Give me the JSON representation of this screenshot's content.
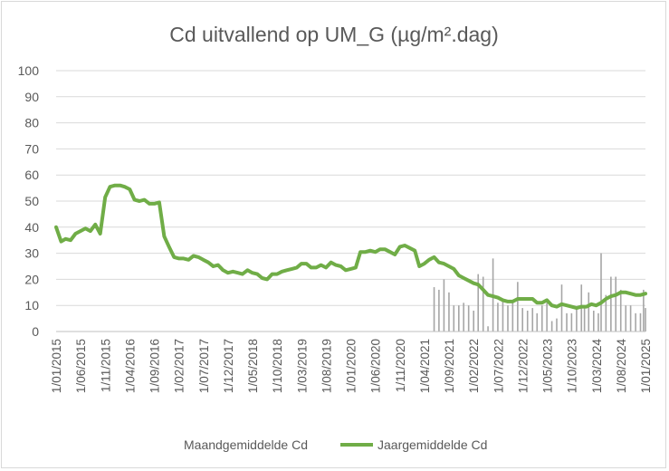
{
  "chart_data": {
    "type": "bar+line",
    "title": "Cd uitvallend op UM_G (µg/m².dag)",
    "ylim": [
      0,
      100
    ],
    "yticks": [
      0,
      10,
      20,
      30,
      40,
      50,
      60,
      70,
      80,
      90,
      100
    ],
    "xlim": [
      "2015-01-01",
      "2025-01-01"
    ],
    "xtick_labels": [
      "1/01/2015",
      "1/06/2015",
      "1/11/2015",
      "1/04/2016",
      "1/09/2016",
      "1/02/2017",
      "1/07/2017",
      "1/12/2017",
      "1/05/2018",
      "1/10/2018",
      "1/03/2019",
      "1/08/2019",
      "1/01/2020",
      "1/06/2020",
      "1/11/2020",
      "1/04/2021",
      "1/09/2021",
      "1/02/2022",
      "1/07/2022",
      "1/12/2022",
      "1/05/2023",
      "1/10/2023",
      "1/03/2024",
      "1/08/2024",
      "1/01/2025"
    ],
    "grid": "horizontal",
    "legend_position": "bottom",
    "series": [
      {
        "name": "Maandgemiddelde Cd",
        "type": "bar",
        "color": "#a6a6a6",
        "points": [
          [
            "2021-06-01",
            17
          ],
          [
            "2021-07-01",
            16
          ],
          [
            "2021-08-01",
            20
          ],
          [
            "2021-09-01",
            15
          ],
          [
            "2021-10-01",
            10
          ],
          [
            "2021-11-01",
            10
          ],
          [
            "2021-12-01",
            11
          ],
          [
            "2022-01-01",
            10
          ],
          [
            "2022-02-01",
            8
          ],
          [
            "2022-03-01",
            22
          ],
          [
            "2022-04-01",
            21
          ],
          [
            "2022-05-01",
            2
          ],
          [
            "2022-06-01",
            28
          ],
          [
            "2022-07-01",
            11
          ],
          [
            "2022-08-01",
            12
          ],
          [
            "2022-09-01",
            10
          ],
          [
            "2022-10-01",
            12
          ],
          [
            "2022-11-01",
            19
          ],
          [
            "2022-12-01",
            9
          ],
          [
            "2023-01-01",
            8
          ],
          [
            "2023-02-01",
            9
          ],
          [
            "2023-03-01",
            7
          ],
          [
            "2023-04-01",
            10
          ],
          [
            "2023-05-01",
            11
          ],
          [
            "2023-06-01",
            4
          ],
          [
            "2023-07-01",
            5
          ],
          [
            "2023-08-01",
            18
          ],
          [
            "2023-09-01",
            7
          ],
          [
            "2023-10-01",
            7
          ],
          [
            "2023-11-01",
            9
          ],
          [
            "2023-12-01",
            18
          ],
          [
            "2023-12-20",
            10
          ],
          [
            "2024-01-15",
            15
          ],
          [
            "2024-02-15",
            8
          ],
          [
            "2024-03-15",
            7
          ],
          [
            "2024-04-01",
            30
          ],
          [
            "2024-05-01",
            14
          ],
          [
            "2024-06-01",
            21
          ],
          [
            "2024-07-01",
            21
          ],
          [
            "2024-08-01",
            16
          ],
          [
            "2024-09-01",
            10
          ],
          [
            "2024-10-01",
            10
          ],
          [
            "2024-11-01",
            7
          ],
          [
            "2024-12-01",
            7
          ],
          [
            "2024-12-20",
            16
          ],
          [
            "2025-01-01",
            9
          ]
        ]
      },
      {
        "name": "Jaargemiddelde Cd",
        "type": "line",
        "color": "#70ad47",
        "points": [
          [
            "2015-01-01",
            40
          ],
          [
            "2015-02-01",
            34.5
          ],
          [
            "2015-03-01",
            35.5
          ],
          [
            "2015-04-01",
            35
          ],
          [
            "2015-05-01",
            37.5
          ],
          [
            "2015-06-01",
            38.5
          ],
          [
            "2015-07-01",
            39.5
          ],
          [
            "2015-08-01",
            38.5
          ],
          [
            "2015-09-01",
            41
          ],
          [
            "2015-10-01",
            37.5
          ],
          [
            "2015-11-01",
            51.5
          ],
          [
            "2015-12-01",
            55.5
          ],
          [
            "2016-01-01",
            56
          ],
          [
            "2016-02-01",
            56
          ],
          [
            "2016-03-01",
            55.5
          ],
          [
            "2016-04-01",
            54.5
          ],
          [
            "2016-05-01",
            50.5
          ],
          [
            "2016-06-01",
            50
          ],
          [
            "2016-07-01",
            50.5
          ],
          [
            "2016-08-01",
            49
          ],
          [
            "2016-09-01",
            49
          ],
          [
            "2016-10-01",
            49.5
          ],
          [
            "2016-11-01",
            36.5
          ],
          [
            "2016-12-01",
            32.5
          ],
          [
            "2017-01-01",
            28.5
          ],
          [
            "2017-02-01",
            28
          ],
          [
            "2017-03-01",
            28
          ],
          [
            "2017-04-01",
            27.5
          ],
          [
            "2017-05-01",
            29
          ],
          [
            "2017-06-01",
            28.5
          ],
          [
            "2017-07-01",
            27.5
          ],
          [
            "2017-08-01",
            26.5
          ],
          [
            "2017-09-01",
            25
          ],
          [
            "2017-10-01",
            25.5
          ],
          [
            "2017-11-01",
            23.5
          ],
          [
            "2017-12-01",
            22.5
          ],
          [
            "2018-01-01",
            23
          ],
          [
            "2018-02-01",
            22.5
          ],
          [
            "2018-03-01",
            22
          ],
          [
            "2018-04-01",
            23.5
          ],
          [
            "2018-05-01",
            22.5
          ],
          [
            "2018-06-01",
            22
          ],
          [
            "2018-07-01",
            20.5
          ],
          [
            "2018-08-01",
            20
          ],
          [
            "2018-09-01",
            22
          ],
          [
            "2018-10-01",
            22
          ],
          [
            "2018-11-01",
            23
          ],
          [
            "2018-12-01",
            23.5
          ],
          [
            "2019-01-01",
            24
          ],
          [
            "2019-02-01",
            24.5
          ],
          [
            "2019-03-01",
            26
          ],
          [
            "2019-04-01",
            26
          ],
          [
            "2019-05-01",
            24.5
          ],
          [
            "2019-06-01",
            24.5
          ],
          [
            "2019-07-01",
            25.5
          ],
          [
            "2019-08-01",
            24.5
          ],
          [
            "2019-09-01",
            26.5
          ],
          [
            "2019-10-01",
            25.5
          ],
          [
            "2019-11-01",
            25
          ],
          [
            "2019-12-01",
            23.5
          ],
          [
            "2020-01-01",
            24
          ],
          [
            "2020-02-01",
            24.5
          ],
          [
            "2020-03-01",
            30.5
          ],
          [
            "2020-04-01",
            30.5
          ],
          [
            "2020-05-01",
            31
          ],
          [
            "2020-06-01",
            30.5
          ],
          [
            "2020-07-01",
            31.5
          ],
          [
            "2020-08-01",
            31.5
          ],
          [
            "2020-09-01",
            30.5
          ],
          [
            "2020-10-01",
            29.5
          ],
          [
            "2020-11-01",
            32.5
          ],
          [
            "2020-12-01",
            33
          ],
          [
            "2021-01-01",
            32
          ],
          [
            "2021-02-01",
            31
          ],
          [
            "2021-03-01",
            25
          ],
          [
            "2021-04-01",
            26
          ],
          [
            "2021-05-01",
            27.5
          ],
          [
            "2021-06-01",
            28.5
          ],
          [
            "2021-07-01",
            26.5
          ],
          [
            "2021-08-01",
            26
          ],
          [
            "2021-09-01",
            25
          ],
          [
            "2021-10-01",
            24
          ],
          [
            "2021-11-01",
            21.5
          ],
          [
            "2021-12-01",
            20.5
          ],
          [
            "2022-01-01",
            19.5
          ],
          [
            "2022-02-01",
            18.5
          ],
          [
            "2022-03-01",
            18
          ],
          [
            "2022-04-01",
            16
          ],
          [
            "2022-05-01",
            14
          ],
          [
            "2022-06-01",
            13.5
          ],
          [
            "2022-07-01",
            13
          ],
          [
            "2022-08-01",
            12
          ],
          [
            "2022-09-01",
            11.5
          ],
          [
            "2022-10-01",
            11.5
          ],
          [
            "2022-11-01",
            12.5
          ],
          [
            "2022-12-01",
            12.5
          ],
          [
            "2023-01-01",
            12.5
          ],
          [
            "2023-02-01",
            12.5
          ],
          [
            "2023-03-01",
            11
          ],
          [
            "2023-04-01",
            11
          ],
          [
            "2023-05-01",
            12
          ],
          [
            "2023-06-01",
            10
          ],
          [
            "2023-07-01",
            9.5
          ],
          [
            "2023-08-01",
            10.5
          ],
          [
            "2023-09-01",
            10
          ],
          [
            "2023-10-01",
            9.5
          ],
          [
            "2023-11-01",
            9
          ],
          [
            "2023-12-01",
            9.5
          ],
          [
            "2024-01-01",
            9.5
          ],
          [
            "2024-02-01",
            10.5
          ],
          [
            "2024-03-01",
            10
          ],
          [
            "2024-04-01",
            11
          ],
          [
            "2024-05-01",
            12.5
          ],
          [
            "2024-06-01",
            13.5
          ],
          [
            "2024-07-01",
            14
          ],
          [
            "2024-08-01",
            15
          ],
          [
            "2024-09-01",
            15
          ],
          [
            "2024-10-01",
            14.5
          ],
          [
            "2024-11-01",
            14
          ],
          [
            "2024-12-01",
            14
          ],
          [
            "2025-01-01",
            14.5
          ]
        ]
      }
    ]
  }
}
